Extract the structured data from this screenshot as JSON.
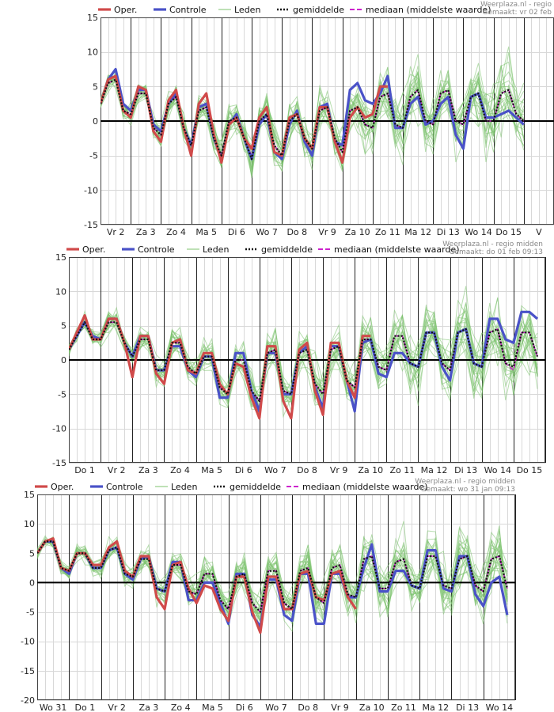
{
  "colors": {
    "oper": "#d04a4a",
    "controle": "#4a52c8",
    "leden": "#7cc36e",
    "gemiddelde": "#111111",
    "mediaan": "#cc22cc",
    "zero": "#000000",
    "grid": "#d8d8d8",
    "day": "#222222"
  },
  "legend": {
    "oper": "Oper.",
    "controle": "Controle",
    "leden": "Leden",
    "gemiddelde": "gemiddelde",
    "mediaan": "mediaan (middelste waarde)"
  },
  "chart_data": [
    {
      "type": "line",
      "source": "Weerplaza.nl - regio",
      "made": "Gemaakt: vr 02 feb",
      "ylim": [
        -15,
        15
      ],
      "yticks": [
        -15,
        -10,
        -5,
        0,
        5,
        10,
        15
      ],
      "days": [
        "Vr 2",
        "Za 3",
        "Zo 4",
        "Ma 5",
        "Di 6",
        "Wo 7",
        "Do 8",
        "Vr 9",
        "Za 10",
        "Zo 11",
        "Ma 12",
        "Di 13",
        "Wo 14",
        "Do 15",
        "V"
      ],
      "steps_per_day": 4,
      "series": [
        {
          "name": "Oper.",
          "values": [
            2.5,
            6,
            6.5,
            1.5,
            0.5,
            5,
            4.5,
            -1.5,
            -3,
            3,
            4.5,
            -1,
            -5,
            2.5,
            4,
            -2,
            -6,
            -0.5,
            0.5,
            -2.5,
            -4,
            0.5,
            2,
            -4.5,
            -5,
            0.5,
            1,
            -2.5,
            -4,
            2,
            2,
            -3,
            -6,
            0.5,
            2,
            0.5,
            1,
            5,
            5
          ]
        },
        {
          "name": "Controle",
          "values": [
            2.5,
            6,
            7.5,
            2.5,
            1.5,
            4.5,
            4.5,
            -0.5,
            -1.5,
            2.5,
            4,
            -1,
            -3.5,
            2,
            2.5,
            -2.5,
            -5.5,
            -0.5,
            1,
            -2.5,
            -5.5,
            -0.5,
            1,
            -4.5,
            -5.5,
            -0.5,
            1.5,
            -3,
            -5,
            2,
            2.5,
            -3,
            -3.5,
            4.5,
            5.5,
            3,
            2.5,
            4,
            6.5,
            -1,
            -1,
            2.5,
            3.5,
            -0.5,
            0,
            2.5,
            3.5,
            -2,
            -4,
            3.5,
            4,
            0.5,
            0.5,
            1,
            1.5,
            0.5,
            -0.5
          ]
        },
        {
          "name": "gemiddelde",
          "values": [
            2.5,
            5.5,
            6,
            1.5,
            1,
            4,
            4,
            -1,
            -2,
            2.5,
            3.5,
            -1,
            -3.5,
            1.5,
            2,
            -2.5,
            -5,
            0,
            0.5,
            -2.5,
            -5.5,
            0,
            1,
            -3.5,
            -5,
            0,
            1,
            -2.5,
            -4,
            1.5,
            2,
            -2.5,
            -4.5,
            1.5,
            2,
            -0.5,
            -1,
            3.5,
            4,
            -0.5,
            -1,
            3.5,
            4.5,
            0,
            -0.5,
            4,
            4.5,
            0,
            -0.5,
            3.5,
            4,
            0,
            0,
            4,
            4.5,
            1,
            0
          ]
        },
        {
          "name": "mediaan (middelste waarde)",
          "values": [
            2.5,
            5.5,
            6,
            1.5,
            1,
            4,
            4,
            -1,
            -2,
            2.5,
            3.5,
            -1,
            -3.5,
            1.5,
            2,
            -2.5,
            -5,
            0,
            0.5,
            -2.5,
            -5,
            0,
            1,
            -3.5,
            -5,
            0,
            1,
            -2.5,
            -4,
            1.5,
            2,
            -2.5,
            -4.5,
            1.5,
            2,
            -0.5,
            -1,
            3.5,
            4,
            -0.5,
            -1,
            3.5,
            4.5,
            0,
            -0.5,
            4,
            4.5,
            0,
            -0.5,
            3.5,
            4,
            0,
            0,
            4,
            4.5,
            1,
            0
          ]
        }
      ]
    },
    {
      "type": "line",
      "source": "Weerplaza.nl - regio midden",
      "made": "Gemaakt: do 01 feb 09:13",
      "ylim": [
        -15,
        15
      ],
      "yticks": [
        -15,
        -10,
        -5,
        0,
        5,
        10,
        15
      ],
      "days": [
        "Do 1",
        "Vr 2",
        "Za 3",
        "Zo 4",
        "Ma 5",
        "Di 6",
        "Wo 7",
        "Do 8",
        "Vr 9",
        "Za 10",
        "Zo 11",
        "Ma 12",
        "Di 13",
        "Wo 14",
        "Do 15"
      ],
      "steps_per_day": 4,
      "series": [
        {
          "name": "Oper.",
          "values": [
            1.5,
            4,
            6.5,
            3,
            3,
            6,
            6,
            2.5,
            -2.5,
            3.5,
            3.5,
            -2,
            -3.5,
            2.5,
            3,
            -1.5,
            -2,
            1,
            1,
            -3.5,
            -5,
            -0.5,
            -1,
            -5.5,
            -8.5,
            2,
            2,
            -6,
            -8.5,
            1.5,
            2.5,
            -4.5,
            -8,
            2.5,
            2.5,
            -3,
            -5.5,
            3.5,
            3.5
          ]
        },
        {
          "name": "Controle",
          "values": [
            1.5,
            3.5,
            5.5,
            3.5,
            3,
            6,
            6,
            2.5,
            0.5,
            3.5,
            3.5,
            -1.5,
            -1.5,
            2,
            2,
            -1.5,
            -2.5,
            0.5,
            0.5,
            -5.5,
            -5.5,
            1,
            1,
            -4.5,
            -7.5,
            1,
            1,
            -5,
            -5,
            1,
            2,
            -4,
            -7,
            2,
            2,
            -3,
            -7.5,
            2.5,
            3,
            -2,
            -2.5,
            1,
            1,
            -0.5,
            -1,
            4,
            4,
            -1,
            -3,
            4,
            4.5,
            -0.5,
            -1,
            6,
            6,
            3,
            2.5,
            7,
            7,
            6
          ]
        },
        {
          "name": "gemiddelde",
          "values": [
            1.5,
            3.5,
            5.5,
            3,
            3,
            5.5,
            5.5,
            2.5,
            0.5,
            3,
            3,
            -1.5,
            -1.5,
            2.5,
            2.5,
            -1,
            -2,
            0.5,
            0.5,
            -4,
            -5,
            0,
            0,
            -4.5,
            -6,
            1,
            1.5,
            -4.5,
            -5,
            1,
            1.5,
            -3.5,
            -5,
            1.5,
            2,
            -3,
            -4,
            3,
            3,
            -1,
            -1.5,
            3.5,
            3.5,
            -0.5,
            -1,
            4,
            4,
            -0.5,
            -1.5,
            4,
            4.5,
            -0.5,
            -1,
            4,
            4.5,
            -0.5,
            -1,
            4,
            4,
            0.5
          ]
        },
        {
          "name": "mediaan (middelste waarde)",
          "values": [
            1.5,
            3.5,
            5.5,
            3,
            3,
            5.5,
            5.5,
            2.5,
            0.5,
            3,
            3,
            -1.5,
            -1.5,
            2.5,
            2.5,
            -1,
            -2,
            0.5,
            0.5,
            -4,
            -5,
            0,
            0,
            -4.5,
            -6,
            1,
            1.5,
            -4.5,
            -5,
            1,
            1.5,
            -3.5,
            -5,
            1.5,
            2,
            -3,
            -4,
            3,
            3,
            -1,
            -1.5,
            3.5,
            3.5,
            -0.5,
            -1,
            4,
            4,
            -0.5,
            -1.5,
            4,
            4.5,
            -0.5,
            -1,
            4,
            4.5,
            -0.5,
            -1.5,
            4,
            4,
            0.5
          ]
        }
      ]
    },
    {
      "type": "line",
      "source": "Weerplaza.nl - regio midden",
      "made": "Gemaakt: wo 31 jan 09:13",
      "ylim": [
        -20,
        15
      ],
      "yticks": [
        -20,
        -15,
        -10,
        -5,
        0,
        5,
        10,
        15
      ],
      "days": [
        "Wo 31",
        "Do 1",
        "Vr 2",
        "Za 3",
        "Zo 4",
        "Ma 5",
        "Di 6",
        "Wo 7",
        "Do 8",
        "Vr 9",
        "Za 10",
        "Zo 11",
        "Ma 12",
        "Di 13",
        "Wo 14"
      ],
      "steps_per_day": 4,
      "series": [
        {
          "name": "Oper.",
          "values": [
            5,
            7,
            7.5,
            2.5,
            2,
            5,
            5,
            3,
            3,
            6,
            7,
            2,
            1,
            4.5,
            4.5,
            -2.5,
            -4.5,
            3,
            3.5,
            -1,
            -3.5,
            -0.5,
            -1,
            -4.5,
            -6.5,
            1,
            1,
            -5,
            -8.5,
            1,
            1,
            -4.5,
            -4.5,
            1.5,
            2,
            -2.5,
            -3,
            1.5,
            2,
            -2.5,
            -4.5
          ]
        },
        {
          "name": "Controle",
          "values": [
            5,
            7,
            7,
            2.5,
            1.5,
            5,
            5,
            2.5,
            2.5,
            5.5,
            6,
            1.5,
            0.5,
            4,
            4.5,
            -1,
            -1.5,
            3.5,
            3.5,
            -3,
            -3,
            0,
            0,
            -3.5,
            -7,
            1.5,
            1.5,
            -5.5,
            -7.5,
            0.5,
            0.5,
            -5.5,
            -6.5,
            1.5,
            1.5,
            -7,
            -7,
            1.5,
            1.5,
            -2.5,
            -2.5,
            2.5,
            6.5,
            -1.5,
            -1.5,
            2,
            2,
            -0.5,
            -1,
            5.5,
            5.5,
            -1,
            -1.5,
            4.5,
            4.5,
            -2,
            -4,
            0,
            1,
            -5.5
          ]
        },
        {
          "name": "gemiddelde",
          "values": [
            5,
            7,
            7,
            2.5,
            2,
            5,
            5,
            2.5,
            2.5,
            5.5,
            6,
            1.5,
            1,
            4,
            4,
            -1,
            -1.5,
            3,
            3,
            -1.5,
            -2,
            1.5,
            1.5,
            -3,
            -4.5,
            1,
            1.5,
            -3.5,
            -5,
            2,
            2,
            -3.5,
            -4.5,
            2,
            2.5,
            -2.5,
            -3.5,
            2.5,
            3,
            -2,
            -2.5,
            4,
            4.5,
            -1,
            -1,
            3.5,
            4,
            -0.5,
            -1,
            4.5,
            4.5,
            -0.5,
            -1,
            4,
            4.5,
            -0.5,
            -1.5,
            4,
            4.5,
            -1
          ]
        },
        {
          "name": "mediaan (middelste waarde)",
          "values": [
            5,
            7,
            7,
            2.5,
            2,
            5,
            5,
            2.5,
            2.5,
            5.5,
            6,
            1.5,
            1,
            4,
            4,
            -1,
            -1.5,
            3,
            3,
            -1.5,
            -2,
            1.5,
            1.5,
            -3,
            -4.5,
            1,
            1.5,
            -3.5,
            -5,
            2,
            2,
            -3.5,
            -4.5,
            2,
            2.5,
            -2.5,
            -3.5,
            2.5,
            3,
            -2,
            -2.5,
            4,
            4.5,
            -1,
            -1,
            3.5,
            4,
            -0.5,
            -1,
            4.5,
            4.5,
            -0.5,
            -1,
            4,
            4.5,
            -0.5,
            -1.5,
            4,
            4.5,
            -1
          ]
        }
      ]
    }
  ]
}
